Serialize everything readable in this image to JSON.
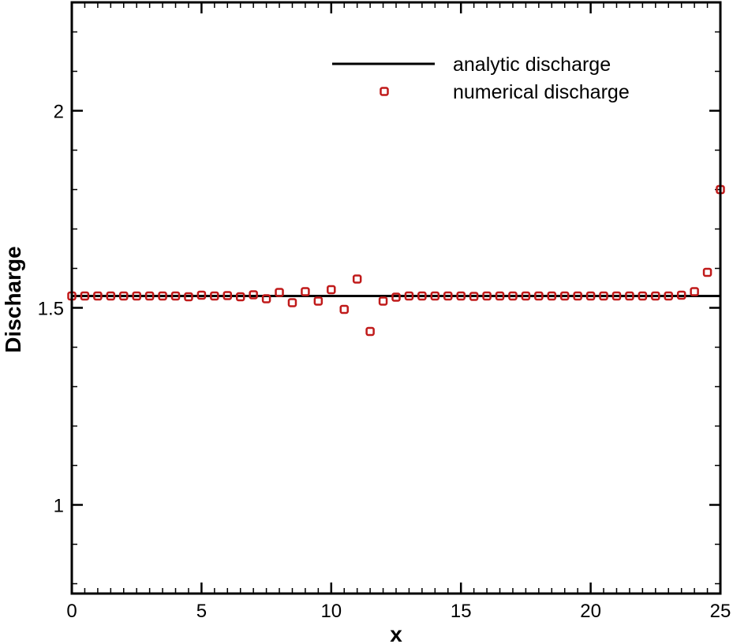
{
  "chart_data": {
    "type": "line",
    "title": "",
    "xlabel": "x",
    "ylabel": "Discharge",
    "xlim": [
      0,
      25
    ],
    "ylim": [
      0.775,
      2.275
    ],
    "x_ticks": [
      0,
      5,
      10,
      15,
      20,
      25
    ],
    "x_tick_labels": [
      "0",
      "5",
      "10",
      "15",
      "20",
      "25"
    ],
    "x_minor_step": 0.5,
    "y_ticks": [
      1,
      1.5,
      2
    ],
    "y_tick_labels": [
      "1",
      "1.5",
      "2"
    ],
    "y_minor_step": 0.1,
    "grid": false,
    "legend_position": "top-right",
    "colors": {
      "analytic": "#000000",
      "numerical": "#c01a1a"
    },
    "series": [
      {
        "name": "analytic discharge",
        "style": "line",
        "x": [
          0,
          25
        ],
        "y": [
          1.53,
          1.53
        ]
      },
      {
        "name": "numerical discharge",
        "style": "markers",
        "x": [
          0,
          0.5,
          1,
          1.5,
          2,
          2.5,
          3,
          3.5,
          4,
          4.5,
          5,
          5.5,
          6,
          6.5,
          7,
          7.5,
          8,
          8.5,
          9,
          9.5,
          10,
          10.5,
          11,
          11.5,
          12,
          12.5,
          13,
          13.5,
          14,
          14.5,
          15,
          15.5,
          16,
          16.5,
          17,
          17.5,
          18,
          18.5,
          19,
          19.5,
          20,
          20.5,
          21,
          21.5,
          22,
          22.5,
          23,
          23.5,
          24,
          24.5,
          25
        ],
        "y": [
          1.53,
          1.53,
          1.53,
          1.53,
          1.53,
          1.53,
          1.53,
          1.53,
          1.53,
          1.528,
          1.532,
          1.53,
          1.531,
          1.528,
          1.533,
          1.523,
          1.539,
          1.513,
          1.541,
          1.517,
          1.546,
          1.496,
          1.573,
          1.44,
          1.517,
          1.527,
          1.53,
          1.53,
          1.53,
          1.53,
          1.53,
          1.529,
          1.53,
          1.53,
          1.53,
          1.53,
          1.53,
          1.53,
          1.53,
          1.53,
          1.53,
          1.53,
          1.53,
          1.53,
          1.53,
          1.53,
          1.53,
          1.532,
          1.541,
          1.59,
          1.8
        ]
      }
    ]
  }
}
